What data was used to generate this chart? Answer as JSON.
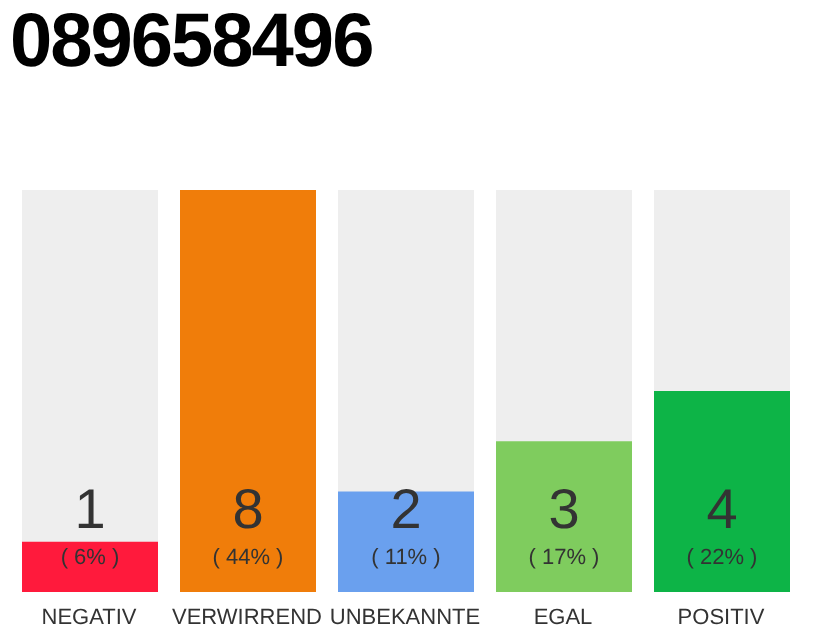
{
  "chart_data": {
    "type": "bar",
    "title": "089658496",
    "categories": [
      "NEGATIV",
      "VERWIRREND",
      "UNBEKANNTE",
      "EGAL",
      "POSITIV"
    ],
    "values": [
      1,
      8,
      2,
      3,
      4
    ],
    "colors": [
      "#ff1a3c",
      "#f07d0a",
      "#6aa0ee",
      "#7fcc5e",
      "#0db447"
    ],
    "data_labels": true,
    "annotations": [
      "( 6% )",
      "( 44% )",
      "( 11% )",
      "( 17% )",
      "( 22% )"
    ]
  }
}
